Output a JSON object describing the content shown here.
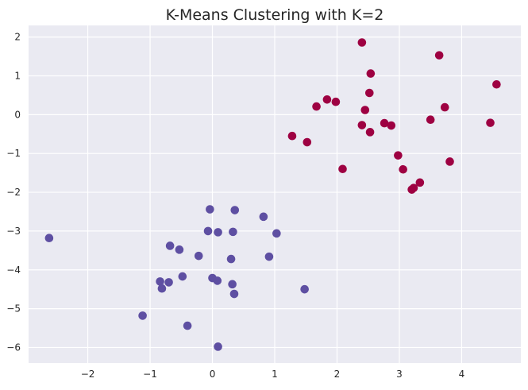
{
  "chart_data": {
    "type": "scatter",
    "title": "K-Means Clustering with K=2",
    "xlabel": "",
    "ylabel": "",
    "xlim": [
      -2.95,
      4.95
    ],
    "ylim": [
      -6.4,
      2.3
    ],
    "grid": true,
    "legend": "none",
    "x_ticks": [
      -2,
      -1,
      0,
      1,
      2,
      3,
      4
    ],
    "y_ticks": [
      2,
      1,
      0,
      -1,
      -2,
      -3,
      -4,
      -5,
      -6
    ],
    "series": [
      {
        "color": "#5e4fa2",
        "points": [
          [
            -2.62,
            -3.18
          ],
          [
            -1.12,
            -5.18
          ],
          [
            -0.84,
            -4.3
          ],
          [
            -0.81,
            -4.48
          ],
          [
            -0.7,
            -4.32
          ],
          [
            -0.68,
            -3.38
          ],
          [
            -0.53,
            -3.48
          ],
          [
            -0.48,
            -4.17
          ],
          [
            -0.4,
            -5.44
          ],
          [
            -0.22,
            -3.64
          ],
          [
            -0.07,
            -3.0
          ],
          [
            -0.04,
            -2.44
          ],
          [
            0.0,
            -4.21
          ],
          [
            0.08,
            -4.28
          ],
          [
            0.09,
            -3.03
          ],
          [
            0.09,
            -5.98
          ],
          [
            0.3,
            -3.72
          ],
          [
            0.32,
            -4.37
          ],
          [
            0.33,
            -3.02
          ],
          [
            0.35,
            -4.62
          ],
          [
            0.36,
            -2.46
          ],
          [
            0.82,
            -2.63
          ],
          [
            0.91,
            -3.66
          ],
          [
            1.03,
            -3.06
          ],
          [
            1.48,
            -4.5
          ]
        ]
      },
      {
        "color": "#9e0142",
        "points": [
          [
            1.28,
            -0.55
          ],
          [
            1.52,
            -0.71
          ],
          [
            1.67,
            0.21
          ],
          [
            1.84,
            0.39
          ],
          [
            1.98,
            0.33
          ],
          [
            2.09,
            -1.4
          ],
          [
            2.4,
            1.86
          ],
          [
            2.4,
            -0.27
          ],
          [
            2.45,
            0.12
          ],
          [
            2.52,
            0.56
          ],
          [
            2.53,
            -0.45
          ],
          [
            2.54,
            1.06
          ],
          [
            2.76,
            -0.22
          ],
          [
            2.87,
            -0.28
          ],
          [
            2.98,
            -1.05
          ],
          [
            3.06,
            -1.41
          ],
          [
            3.2,
            -1.93
          ],
          [
            3.23,
            -1.89
          ],
          [
            3.33,
            -1.75
          ],
          [
            3.5,
            -0.13
          ],
          [
            3.64,
            1.53
          ],
          [
            3.73,
            0.19
          ],
          [
            3.81,
            -1.21
          ],
          [
            4.46,
            -0.21
          ],
          [
            4.56,
            0.78
          ]
        ]
      }
    ]
  }
}
